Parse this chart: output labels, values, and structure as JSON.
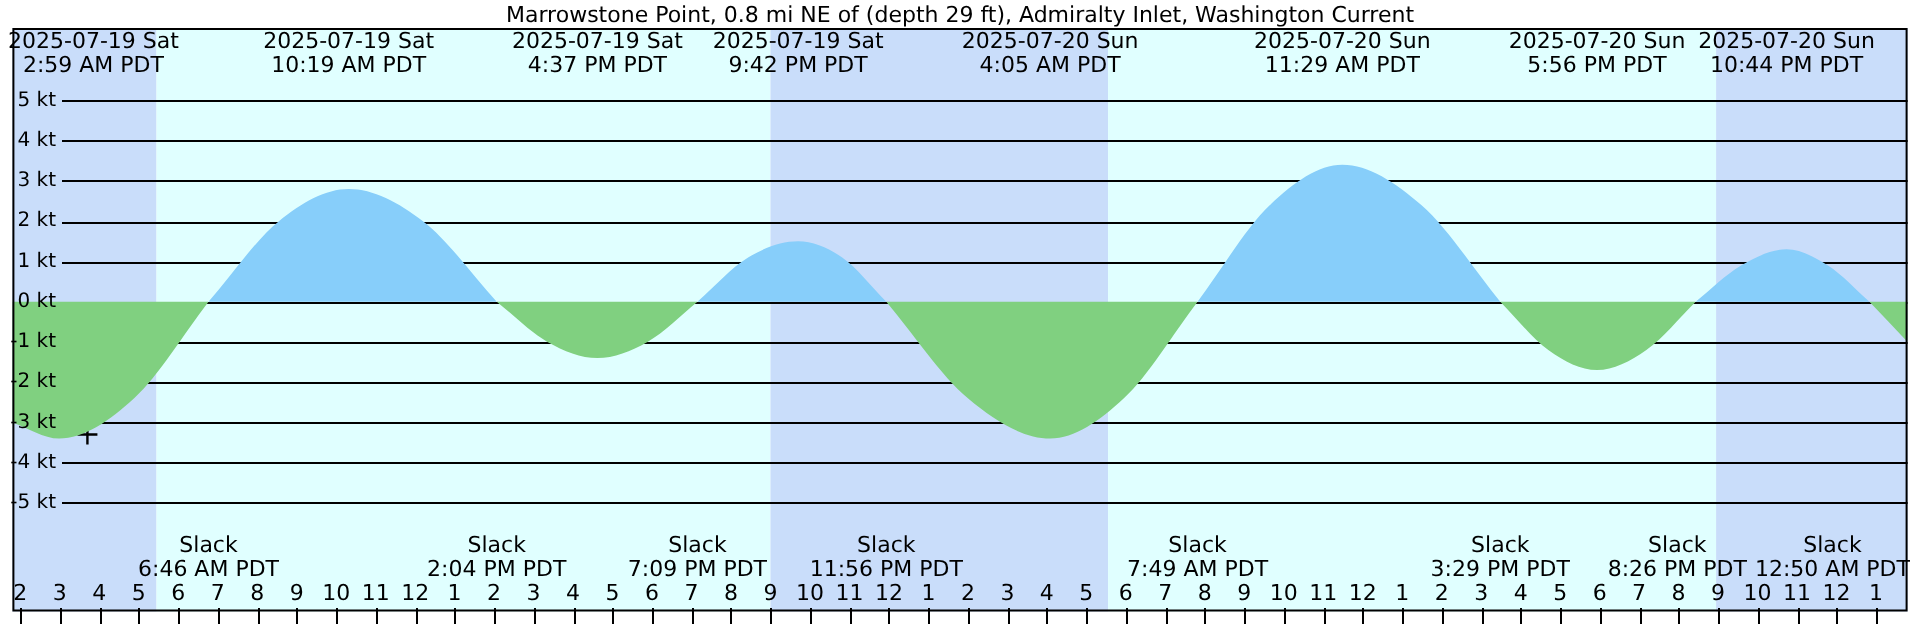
{
  "chart_data": {
    "type": "area",
    "title": "Marrowstone Point, 0.8 mi NE of (depth 29 ft), Admiralty Inlet, Washington Current",
    "x": [
      "2025-07-19T01:48",
      "2025-07-19T02:59",
      "2025-07-19T04:53",
      "2025-07-19T06:46",
      "2025-07-19T08:33",
      "2025-07-19T10:19",
      "2025-07-19T12:12",
      "2025-07-19T14:04",
      "2025-07-19T15:21",
      "2025-07-19T16:37",
      "2025-07-19T17:53",
      "2025-07-19T19:09",
      "2025-07-19T20:26",
      "2025-07-19T21:42",
      "2025-07-19T22:49",
      "2025-07-19T23:56",
      "2025-07-20T02:00",
      "2025-07-20T04:05",
      "2025-07-20T05:57",
      "2025-07-20T07:49",
      "2025-07-20T09:39",
      "2025-07-20T11:29",
      "2025-07-20T13:29",
      "2025-07-20T15:29",
      "2025-07-20T16:42",
      "2025-07-20T17:56",
      "2025-07-20T19:11",
      "2025-07-20T20:26",
      "2025-07-20T21:35",
      "2025-07-20T22:44",
      "2025-07-20T23:47",
      "2025-07-21T00:50",
      "2025-07-21T01:48"
    ],
    "series": [
      {
        "color": "#87cefa",
        "values": [
          null,
          null,
          null,
          0,
          2.0,
          2.8,
          2.0,
          0,
          null,
          null,
          null,
          0,
          1.1,
          1.5,
          1.1,
          0,
          null,
          null,
          null,
          0,
          2.4,
          3.4,
          2.4,
          0,
          null,
          null,
          null,
          0,
          0.9,
          1.3,
          0.9,
          0,
          null
        ]
      },
      {
        "color": "#80d080",
        "values": [
          -3.0,
          -3.4,
          -2.4,
          0,
          null,
          null,
          null,
          0,
          -1.0,
          -1.4,
          -1.0,
          0,
          null,
          null,
          null,
          0,
          -2.4,
          -3.4,
          -2.4,
          0,
          null,
          null,
          null,
          0,
          -1.2,
          -1.7,
          -1.2,
          0,
          null,
          null,
          null,
          0,
          -1.0
        ]
      },
      {
        "type": "scatter",
        "marker": "cross",
        "color": "#000000",
        "x": [
          "2025-07-19T03:42"
        ],
        "values": [
          -3.3
        ]
      }
    ],
    "xlim": [
      "2025-07-19T01:48",
      "2025-07-21T01:48"
    ],
    "ylim": [
      -7.7,
      6.8
    ],
    "xticks": [
      {
        "value": "2025-07-19T02:00",
        "label": "2"
      },
      {
        "value": "2025-07-19T03:00",
        "label": "3"
      },
      {
        "value": "2025-07-19T04:00",
        "label": "4"
      },
      {
        "value": "2025-07-19T05:00",
        "label": "5"
      },
      {
        "value": "2025-07-19T06:00",
        "label": "6"
      },
      {
        "value": "2025-07-19T07:00",
        "label": "7"
      },
      {
        "value": "2025-07-19T08:00",
        "label": "8"
      },
      {
        "value": "2025-07-19T09:00",
        "label": "9"
      },
      {
        "value": "2025-07-19T10:00",
        "label": "10"
      },
      {
        "value": "2025-07-19T11:00",
        "label": "11"
      },
      {
        "value": "2025-07-19T12:00",
        "label": "12"
      },
      {
        "value": "2025-07-19T13:00",
        "label": "1"
      },
      {
        "value": "2025-07-19T14:00",
        "label": "2"
      },
      {
        "value": "2025-07-19T15:00",
        "label": "3"
      },
      {
        "value": "2025-07-19T16:00",
        "label": "4"
      },
      {
        "value": "2025-07-19T17:00",
        "label": "5"
      },
      {
        "value": "2025-07-19T18:00",
        "label": "6"
      },
      {
        "value": "2025-07-19T19:00",
        "label": "7"
      },
      {
        "value": "2025-07-19T20:00",
        "label": "8"
      },
      {
        "value": "2025-07-19T21:00",
        "label": "9"
      },
      {
        "value": "2025-07-19T22:00",
        "label": "10"
      },
      {
        "value": "2025-07-19T23:00",
        "label": "11"
      },
      {
        "value": "2025-07-20T00:00",
        "label": "12"
      },
      {
        "value": "2025-07-20T01:00",
        "label": "1"
      },
      {
        "value": "2025-07-20T02:00",
        "label": "2"
      },
      {
        "value": "2025-07-20T03:00",
        "label": "3"
      },
      {
        "value": "2025-07-20T04:00",
        "label": "4"
      },
      {
        "value": "2025-07-20T05:00",
        "label": "5"
      },
      {
        "value": "2025-07-20T06:00",
        "label": "6"
      },
      {
        "value": "2025-07-20T07:00",
        "label": "7"
      },
      {
        "value": "2025-07-20T08:00",
        "label": "8"
      },
      {
        "value": "2025-07-20T09:00",
        "label": "9"
      },
      {
        "value": "2025-07-20T10:00",
        "label": "10"
      },
      {
        "value": "2025-07-20T11:00",
        "label": "11"
      },
      {
        "value": "2025-07-20T12:00",
        "label": "12"
      },
      {
        "value": "2025-07-20T13:00",
        "label": "1"
      },
      {
        "value": "2025-07-20T14:00",
        "label": "2"
      },
      {
        "value": "2025-07-20T15:00",
        "label": "3"
      },
      {
        "value": "2025-07-20T16:00",
        "label": "4"
      },
      {
        "value": "2025-07-20T17:00",
        "label": "5"
      },
      {
        "value": "2025-07-20T18:00",
        "label": "6"
      },
      {
        "value": "2025-07-20T19:00",
        "label": "7"
      },
      {
        "value": "2025-07-20T20:00",
        "label": "8"
      },
      {
        "value": "2025-07-20T21:00",
        "label": "9"
      },
      {
        "value": "2025-07-20T22:00",
        "label": "10"
      },
      {
        "value": "2025-07-20T23:00",
        "label": "11"
      },
      {
        "value": "2025-07-21T00:00",
        "label": "12"
      },
      {
        "value": "2025-07-21T01:00",
        "label": "1"
      }
    ],
    "yticks": [
      {
        "value": 5,
        "label": "5 kt"
      },
      {
        "value": 4,
        "label": "4 kt"
      },
      {
        "value": 3,
        "label": "3 kt"
      },
      {
        "value": 2,
        "label": "2 kt"
      },
      {
        "value": 1,
        "label": "1 kt"
      },
      {
        "value": 0,
        "label": "0 kt"
      },
      {
        "value": -1,
        "label": "-1 kt"
      },
      {
        "value": -2,
        "label": "-2 kt"
      },
      {
        "value": -3,
        "label": "-3 kt"
      },
      {
        "value": -4,
        "label": "-4 kt"
      },
      {
        "value": -5,
        "label": "-5 kt"
      }
    ],
    "grid": "y",
    "bands": [
      {
        "axis": "x",
        "from": "2025-07-19T01:48",
        "to": "2025-07-19T05:27",
        "color": "#c9ddfa"
      },
      {
        "axis": "x",
        "from": "2025-07-19T05:27",
        "to": "2025-07-19T21:00",
        "color": "#e0ffff"
      },
      {
        "axis": "x",
        "from": "2025-07-19T21:00",
        "to": "2025-07-20T05:33",
        "color": "#c9ddfa"
      },
      {
        "axis": "x",
        "from": "2025-07-20T05:33",
        "to": "2025-07-20T20:57",
        "color": "#e0ffff"
      },
      {
        "axis": "x",
        "from": "2025-07-20T20:57",
        "to": "2025-07-21T01:48",
        "color": "#c9ddfa"
      }
    ],
    "annotations": [
      "2025-07-19 Sat\n2:59 AM PDT",
      "2025-07-19 Sat\n10:19 AM PDT",
      "2025-07-19 Sat\n4:37 PM PDT",
      "2025-07-19 Sat\n9:42 PM PDT",
      "2025-07-20 Sun\n4:05 AM PDT",
      "2025-07-20 Sun\n11:29 AM PDT",
      "2025-07-20 Sun\n5:56 PM PDT",
      "2025-07-20 Sun\n10:44 PM PDT",
      "Slack\n6:46 AM PDT",
      "Slack\n2:04 PM PDT",
      "Slack\n7:09 PM PDT",
      "Slack\n11:56 PM PDT",
      "Slack\n7:49 AM PDT",
      "Slack\n3:29 PM PDT",
      "Slack\n8:26 PM PDT",
      "Slack\n12:50 AM PDT"
    ]
  }
}
